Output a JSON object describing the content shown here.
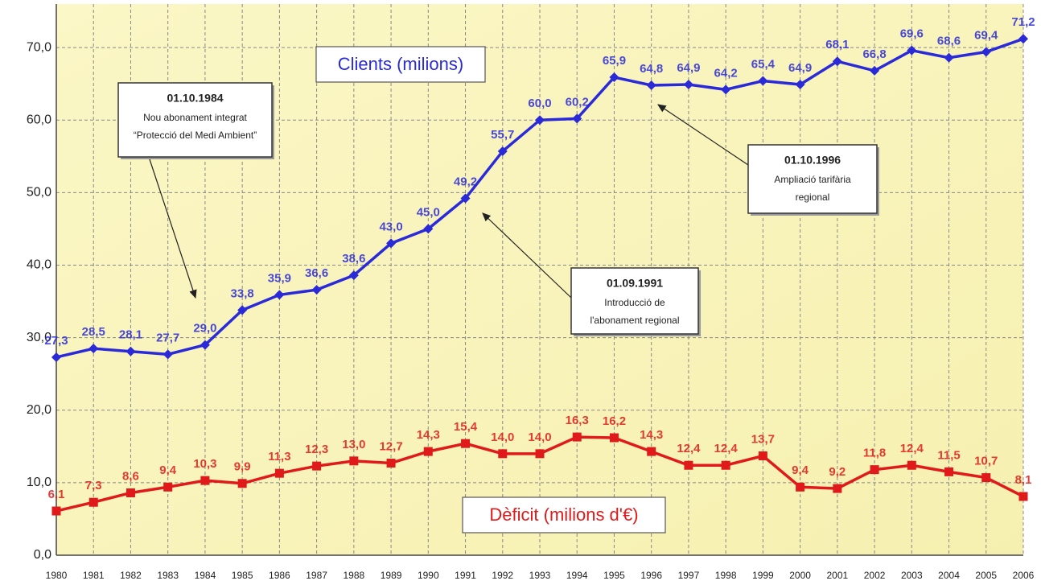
{
  "chart_data": {
    "type": "line",
    "categories": [
      "1980",
      "1981",
      "1982",
      "1983",
      "1984",
      "1985",
      "1986",
      "1987",
      "1988",
      "1989",
      "1990",
      "1991",
      "1992",
      "1993",
      "1994",
      "1995",
      "1996",
      "1997",
      "1998",
      "1999",
      "2000",
      "2001",
      "2002",
      "2003",
      "2004",
      "2005",
      "2006"
    ],
    "series": [
      {
        "name": "Clients (milions)",
        "color": "#2a2ad8",
        "marker": "diamond",
        "values": [
          27.3,
          28.5,
          28.1,
          27.7,
          29.0,
          33.8,
          35.9,
          36.6,
          38.6,
          43.0,
          45.0,
          49.2,
          55.7,
          60.0,
          60.2,
          65.9,
          64.8,
          64.9,
          64.2,
          65.4,
          64.9,
          68.1,
          66.8,
          69.6,
          68.6,
          69.4,
          71.2
        ],
        "value_labels": [
          "27,3",
          "28,5",
          "28,1",
          "27,7",
          "29,0",
          "33,8",
          "35,9",
          "36,6",
          "38,6",
          "43,0",
          "45,0",
          "49,2",
          "55,7",
          "60,0",
          "60,2",
          "65,9",
          "64,8",
          "64,9",
          "64,2",
          "65,4",
          "64,9",
          "68,1",
          "66,8",
          "69,6",
          "68,6",
          "69,4",
          "71,2"
        ]
      },
      {
        "name": "Dèficit (milions d'€)",
        "color": "#e01a1a",
        "marker": "square",
        "values": [
          6.1,
          7.3,
          8.6,
          9.4,
          10.3,
          9.9,
          11.3,
          12.3,
          13.0,
          12.7,
          14.3,
          15.4,
          14.0,
          14.0,
          16.3,
          16.2,
          14.3,
          12.4,
          12.4,
          13.7,
          9.4,
          9.2,
          11.8,
          12.4,
          11.5,
          10.7,
          8.1
        ],
        "value_labels": [
          "6,1",
          "7,3",
          "8,6",
          "9,4",
          "10,3",
          "9,9",
          "11,3",
          "12,3",
          "13,0",
          "12,7",
          "14,3",
          "15,4",
          "14,0",
          "14,0",
          "16,3",
          "16,2",
          "14,3",
          "12,4",
          "12,4",
          "13,7",
          "9,4",
          "9,2",
          "11,8",
          "12,4",
          "11,5",
          "10,7",
          "8,1"
        ]
      }
    ],
    "ylim": [
      0,
      76
    ],
    "yticks": [
      {
        "value": 0,
        "label": "0,0"
      },
      {
        "value": 10,
        "label": "10,0"
      },
      {
        "value": 20,
        "label": "20,0"
      },
      {
        "value": 30,
        "label": "30,0"
      },
      {
        "value": 40,
        "label": "40,0"
      },
      {
        "value": 50,
        "label": "50,0"
      },
      {
        "value": 60,
        "label": "60,0"
      },
      {
        "value": 70,
        "label": "70,0"
      }
    ],
    "grid": true,
    "annotations": [
      {
        "title": "01.10.1984",
        "lines": [
          "Nou abonament integrat",
          "“Protecció del Medi Ambient”"
        ]
      },
      {
        "title": "01.09.1991",
        "lines": [
          "Introducció de",
          "l'abonament regional"
        ]
      },
      {
        "title": "01.10.1996",
        "lines": [
          "Ampliació tarifària",
          "regional"
        ]
      }
    ]
  }
}
